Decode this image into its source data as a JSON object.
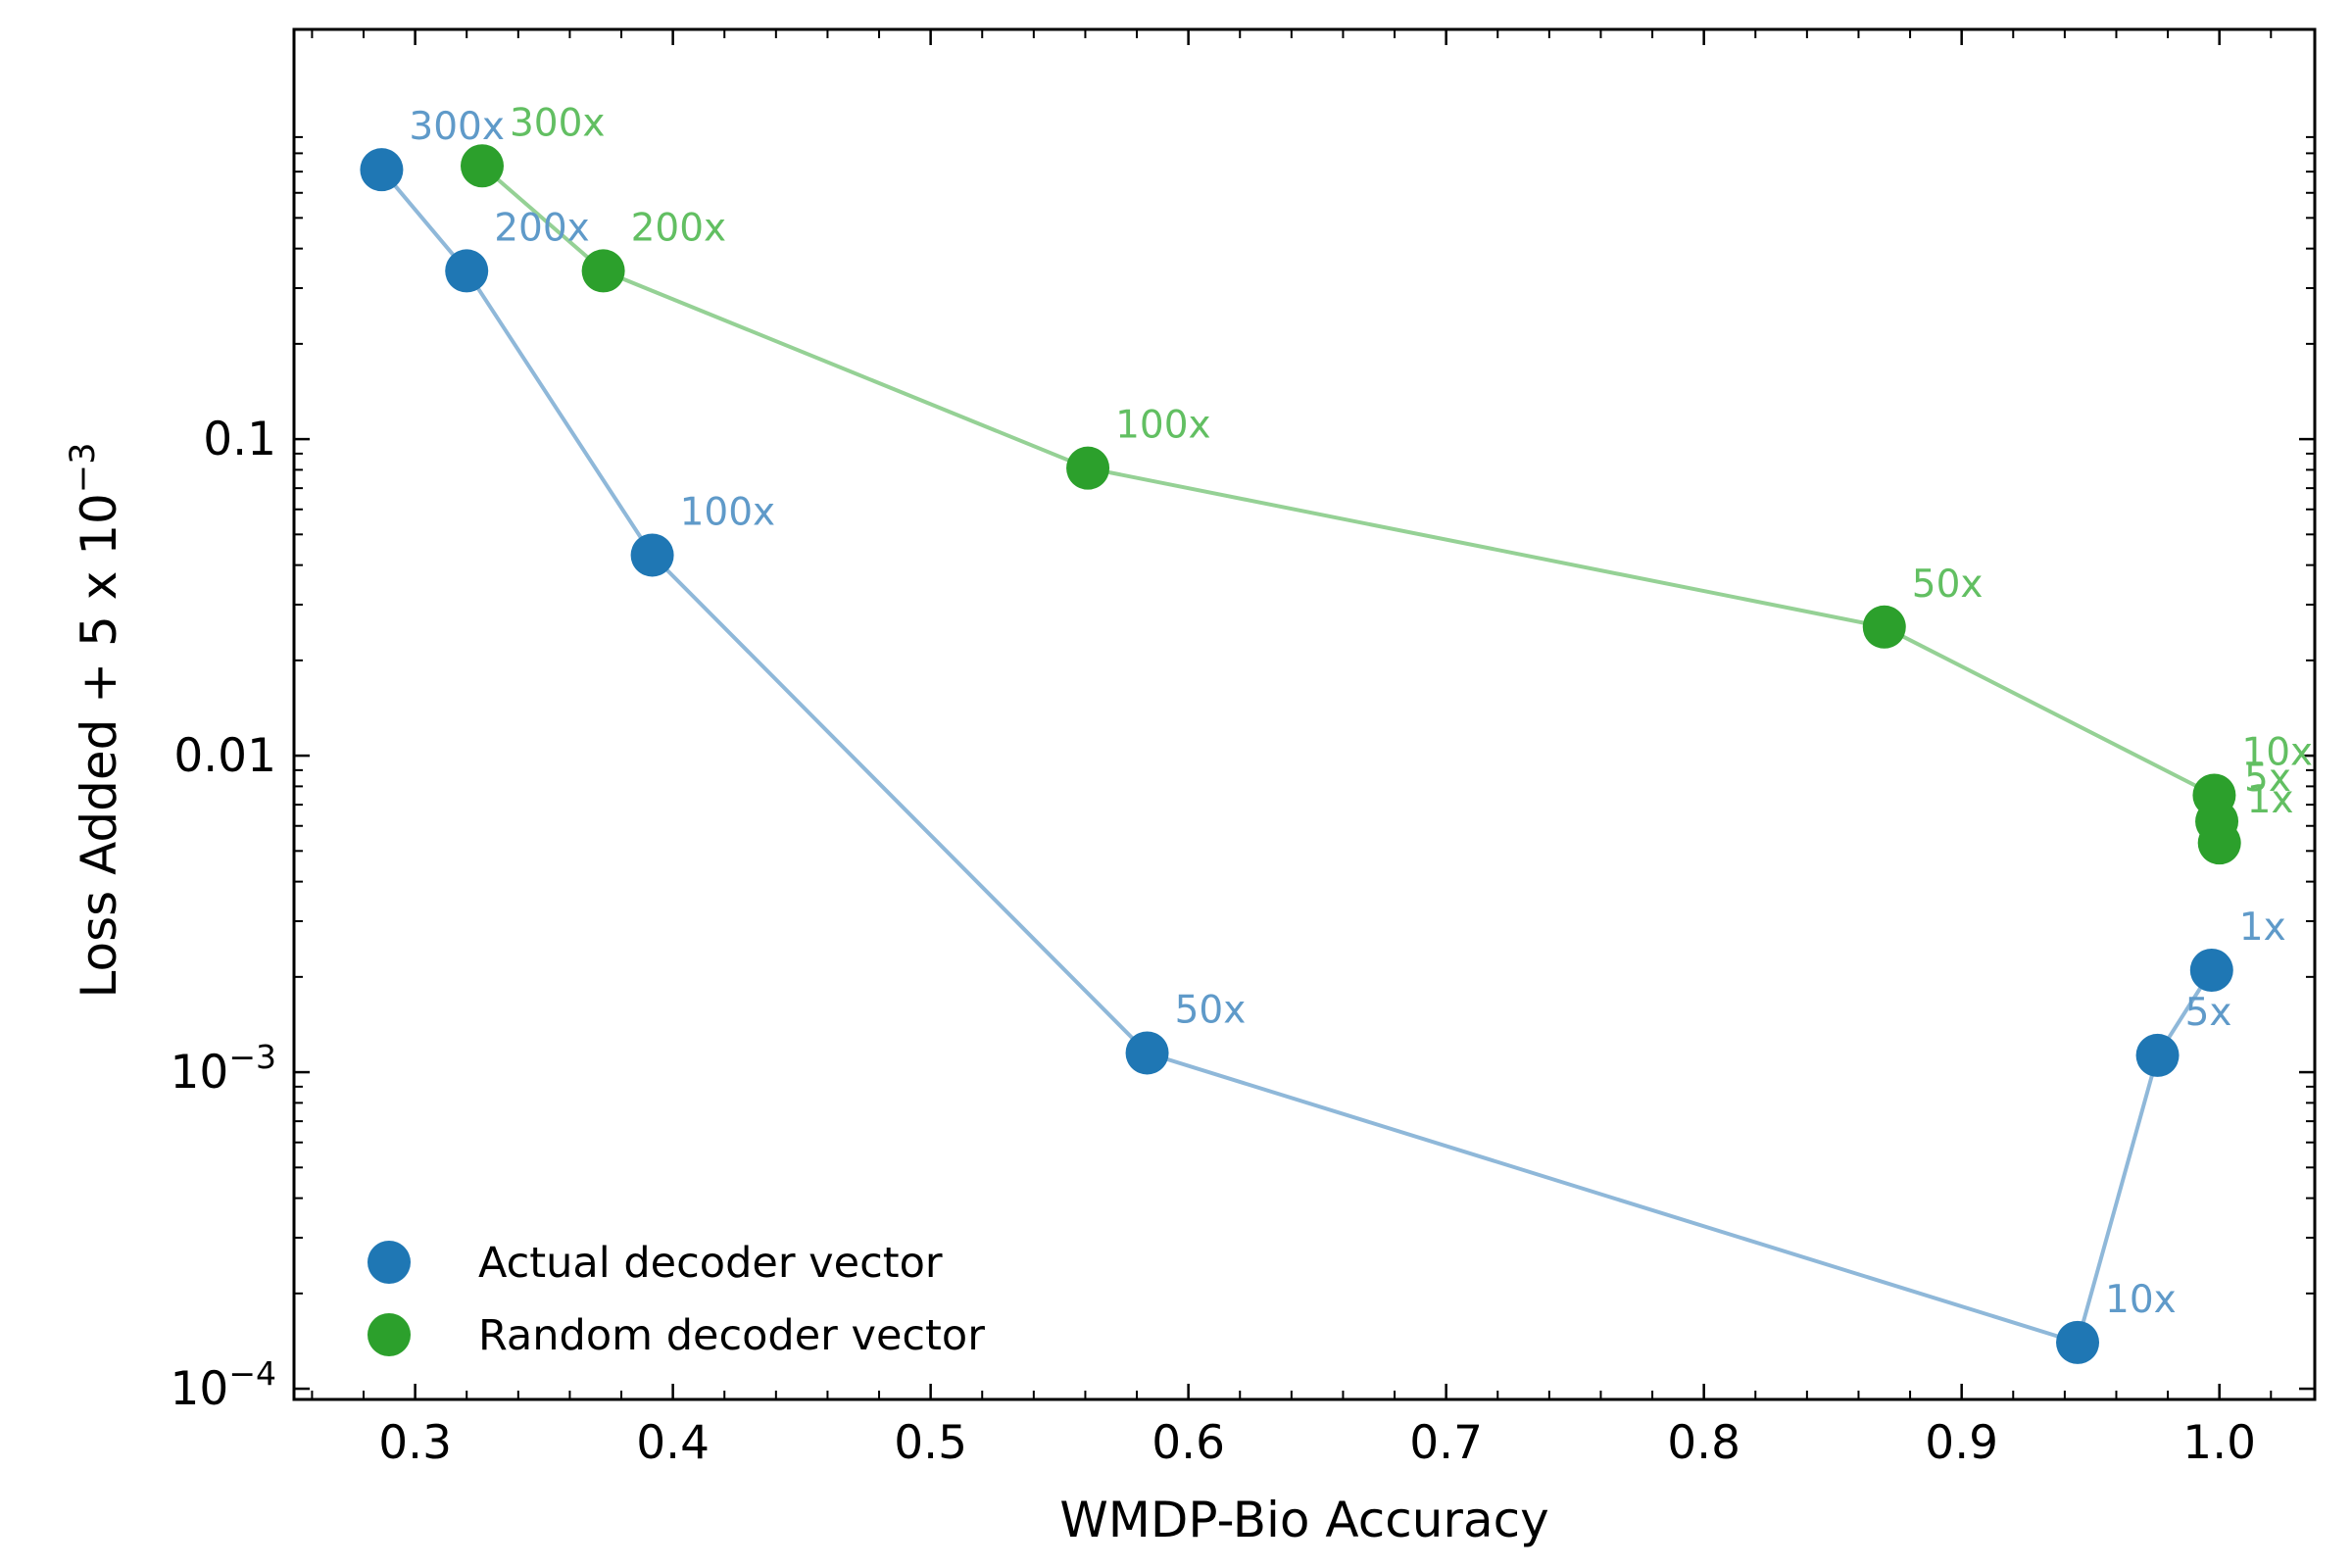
{
  "chart_data": {
    "type": "scatter",
    "title": "",
    "xlabel": "WMDP-Bio Accuracy",
    "ylabel": "Loss Added + 5 x 10",
    "ylabel_superscript": "−3",
    "x_scale": "linear",
    "y_scale": "log",
    "xlim": [
      0.253,
      1.037
    ],
    "ylim": [
      9.25e-05,
      1.97
    ],
    "x_ticks": [
      0.3,
      0.4,
      0.5,
      0.6,
      0.7,
      0.8,
      0.9,
      1.0
    ],
    "x_tick_labels": [
      "0.3",
      "0.4",
      "0.5",
      "0.6",
      "0.7",
      "0.8",
      "0.9",
      "1.0"
    ],
    "y_ticks": [
      0.0001,
      0.001,
      0.01,
      0.1
    ],
    "y_tick_labels": [
      {
        "base": "10",
        "sup": "−4"
      },
      {
        "base": "10",
        "sup": "−3"
      },
      {
        "base": "0.01",
        "sup": ""
      },
      {
        "base": "0.1",
        "sup": ""
      }
    ],
    "grid": false,
    "legend_position": "lower-left",
    "series": [
      {
        "name": "Actual decoder vector",
        "color": "#1f77b4",
        "label_color": "#5f9ac9",
        "line_color": "#8fb8d9",
        "points": [
          {
            "x": 0.287,
            "y": 0.71,
            "label": "300x"
          },
          {
            "x": 0.32,
            "y": 0.34,
            "label": "200x"
          },
          {
            "x": 0.392,
            "y": 0.043,
            "label": "100x"
          },
          {
            "x": 0.584,
            "y": 0.00115,
            "label": "50x"
          },
          {
            "x": 0.945,
            "y": 0.00014,
            "label": "10x"
          },
          {
            "x": 0.976,
            "y": 0.00113,
            "label": "5x"
          },
          {
            "x": 0.997,
            "y": 0.0021,
            "label": "1x"
          }
        ]
      },
      {
        "name": "Random decoder vector",
        "color": "#2ca02c",
        "label_color": "#62bf62",
        "line_color": "#95d195",
        "points": [
          {
            "x": 0.326,
            "y": 0.73,
            "label": "300x"
          },
          {
            "x": 0.373,
            "y": 0.34,
            "label": "200x"
          },
          {
            "x": 0.561,
            "y": 0.081,
            "label": "100x"
          },
          {
            "x": 0.87,
            "y": 0.0255,
            "label": "50x"
          },
          {
            "x": 0.998,
            "y": 0.0075,
            "label": "10x"
          },
          {
            "x": 0.999,
            "y": 0.0062,
            "label": "5x"
          },
          {
            "x": 1.0,
            "y": 0.0053,
            "label": "1x"
          }
        ]
      }
    ]
  }
}
